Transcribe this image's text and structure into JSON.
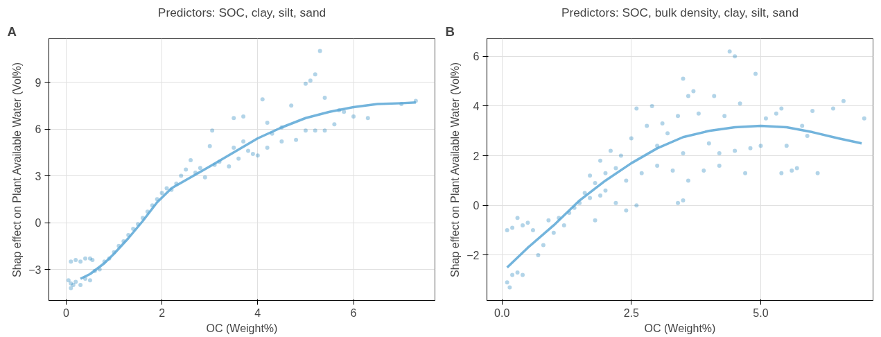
{
  "chart_data": [
    {
      "type": "scatter",
      "title": "Predictors: SOC, clay, silt, sand",
      "xlabel": "OC (Weight%)",
      "ylabel": "Shap effect on Plant Available Water (Vol%)",
      "annotations": [
        "A"
      ],
      "xlim": [
        -0.36,
        7.7
      ],
      "ylim": [
        -5.0,
        11.8
      ],
      "xticks": [
        0,
        2,
        4,
        6
      ],
      "yticks": [
        -3,
        0,
        3,
        6,
        9
      ],
      "grid": true,
      "marker": "circle",
      "series": [
        {
          "color": "#0072b2",
          "x": [
            0.05,
            0.1,
            0.15,
            0.1,
            0.2,
            0.3,
            0.4,
            0.5,
            0.1,
            0.2,
            0.3,
            0.4,
            0.5,
            0.55,
            0.6,
            0.7,
            0.8,
            0.9,
            1.0,
            1.1,
            1.2,
            1.3,
            1.4,
            1.5,
            1.6,
            1.7,
            1.8,
            1.9,
            2.0,
            2.1,
            2.2,
            2.3,
            2.4,
            2.5,
            2.6,
            2.7,
            2.8,
            2.9,
            3.0,
            3.05,
            3.1,
            3.2,
            3.4,
            3.5,
            3.5,
            3.6,
            3.7,
            3.7,
            3.8,
            3.9,
            4.0,
            4.1,
            4.2,
            4.2,
            4.3,
            4.5,
            4.5,
            4.7,
            4.8,
            5.0,
            5.1,
            5.2,
            5.0,
            5.2,
            5.3,
            5.4,
            5.4,
            5.6,
            5.7,
            5.8,
            6.0,
            6.3,
            7.0,
            7.3
          ],
          "values": [
            -3.7,
            -4.2,
            -4.0,
            -3.9,
            -3.8,
            -4.0,
            -3.6,
            -3.7,
            -2.5,
            -2.4,
            -2.5,
            -2.3,
            -2.3,
            -2.4,
            -3.1,
            -3.0,
            -2.5,
            -2.3,
            -1.9,
            -1.5,
            -1.2,
            -0.8,
            -0.4,
            -0.1,
            0.3,
            0.7,
            1.1,
            1.5,
            1.9,
            2.2,
            2.1,
            2.5,
            3.0,
            3.4,
            4.0,
            3.2,
            3.5,
            2.9,
            4.9,
            5.9,
            3.7,
            3.9,
            3.6,
            6.7,
            4.8,
            4.1,
            6.8,
            5.2,
            4.6,
            4.4,
            4.3,
            7.9,
            6.4,
            4.8,
            5.7,
            5.2,
            6.1,
            7.5,
            5.3,
            8.9,
            9.1,
            9.5,
            5.9,
            5.9,
            11.0,
            8.0,
            5.9,
            6.3,
            7.2,
            7.1,
            6.8,
            6.7,
            7.6,
            7.8
          ]
        },
        {
          "type": "line",
          "marker": "none",
          "color": "#5ba7d6",
          "x": [
            0.3,
            0.5,
            0.8,
            1.0,
            1.3,
            1.6,
            1.9,
            2.2,
            2.6,
            3.0,
            3.5,
            4.0,
            4.5,
            5.0,
            5.5,
            6.0,
            6.5,
            7.0,
            7.3
          ],
          "values": [
            -3.6,
            -3.3,
            -2.6,
            -2.0,
            -1.0,
            0.1,
            1.3,
            2.2,
            2.9,
            3.6,
            4.5,
            5.4,
            6.1,
            6.7,
            7.1,
            7.4,
            7.6,
            7.65,
            7.7
          ]
        }
      ]
    },
    {
      "type": "scatter",
      "title": "Predictors: SOC, bulk density, clay, silt, sand",
      "xlabel": "OC (Weight%)",
      "ylabel": "Shap effect on Plant Available Water (Vol%)",
      "annotations": [
        "B"
      ],
      "xlim": [
        -0.29,
        7.17
      ],
      "ylim": [
        -3.83,
        6.72
      ],
      "xticks": [
        {
          "value": 0,
          "label": "0.0"
        },
        2.5,
        {
          "value": 5,
          "label": "5.0"
        }
      ],
      "yticks": [
        -2,
        0,
        2,
        4,
        6
      ],
      "grid": true,
      "marker": "circle",
      "series": [
        {
          "color": "#0072b2",
          "x": [
            0.1,
            0.15,
            0.2,
            0.3,
            0.4,
            0.1,
            0.2,
            0.3,
            0.4,
            0.5,
            0.6,
            0.7,
            0.8,
            0.9,
            1.0,
            1.1,
            1.2,
            1.3,
            1.4,
            1.5,
            1.6,
            1.7,
            1.7,
            1.8,
            1.8,
            1.9,
            1.9,
            2.0,
            2.0,
            2.1,
            2.2,
            2.2,
            2.3,
            2.4,
            2.4,
            2.5,
            2.6,
            2.6,
            2.7,
            2.8,
            2.9,
            3.0,
            3.0,
            3.1,
            3.2,
            3.3,
            3.4,
            3.5,
            3.5,
            3.4,
            3.5,
            3.6,
            3.6,
            3.7,
            3.8,
            3.9,
            4.0,
            4.1,
            4.2,
            4.2,
            4.3,
            4.4,
            4.5,
            4.5,
            4.6,
            4.7,
            4.8,
            4.9,
            5.0,
            5.1,
            5.3,
            5.4,
            5.5,
            5.4,
            5.6,
            5.7,
            5.8,
            5.9,
            6.0,
            6.1,
            6.4,
            6.6,
            7.0
          ],
          "values": [
            -3.1,
            -3.3,
            -2.8,
            -2.7,
            -2.8,
            -1.0,
            -0.9,
            -0.5,
            -0.8,
            -0.7,
            -1.0,
            -2.0,
            -1.6,
            -0.6,
            -1.1,
            -0.5,
            -0.8,
            -0.3,
            -0.1,
            0.1,
            0.5,
            0.3,
            1.2,
            0.9,
            -0.6,
            0.4,
            1.8,
            1.3,
            0.6,
            2.2,
            1.5,
            0.1,
            2.0,
            1.0,
            -0.2,
            2.7,
            3.9,
            0.0,
            1.3,
            3.2,
            4.0,
            2.4,
            1.6,
            3.3,
            2.9,
            1.4,
            3.6,
            2.1,
            5.1,
            0.1,
            0.2,
            1.0,
            4.4,
            4.6,
            3.7,
            1.4,
            2.5,
            4.4,
            1.6,
            2.1,
            3.6,
            6.2,
            6.0,
            2.2,
            4.1,
            1.3,
            2.3,
            5.3,
            2.4,
            3.5,
            3.7,
            1.3,
            2.4,
            3.9,
            1.4,
            1.5,
            3.2,
            2.8,
            3.8,
            1.3,
            3.9,
            4.2,
            3.5
          ]
        },
        {
          "type": "line",
          "marker": "none",
          "color": "#5ba7d6",
          "x": [
            0.1,
            0.5,
            1.0,
            1.5,
            2.0,
            2.5,
            3.0,
            3.5,
            4.0,
            4.5,
            5.0,
            5.5,
            6.0,
            6.5,
            6.95
          ],
          "values": [
            -2.5,
            -1.7,
            -0.8,
            0.2,
            1.0,
            1.7,
            2.3,
            2.75,
            3.0,
            3.15,
            3.2,
            3.15,
            2.95,
            2.7,
            2.5
          ]
        }
      ]
    }
  ]
}
